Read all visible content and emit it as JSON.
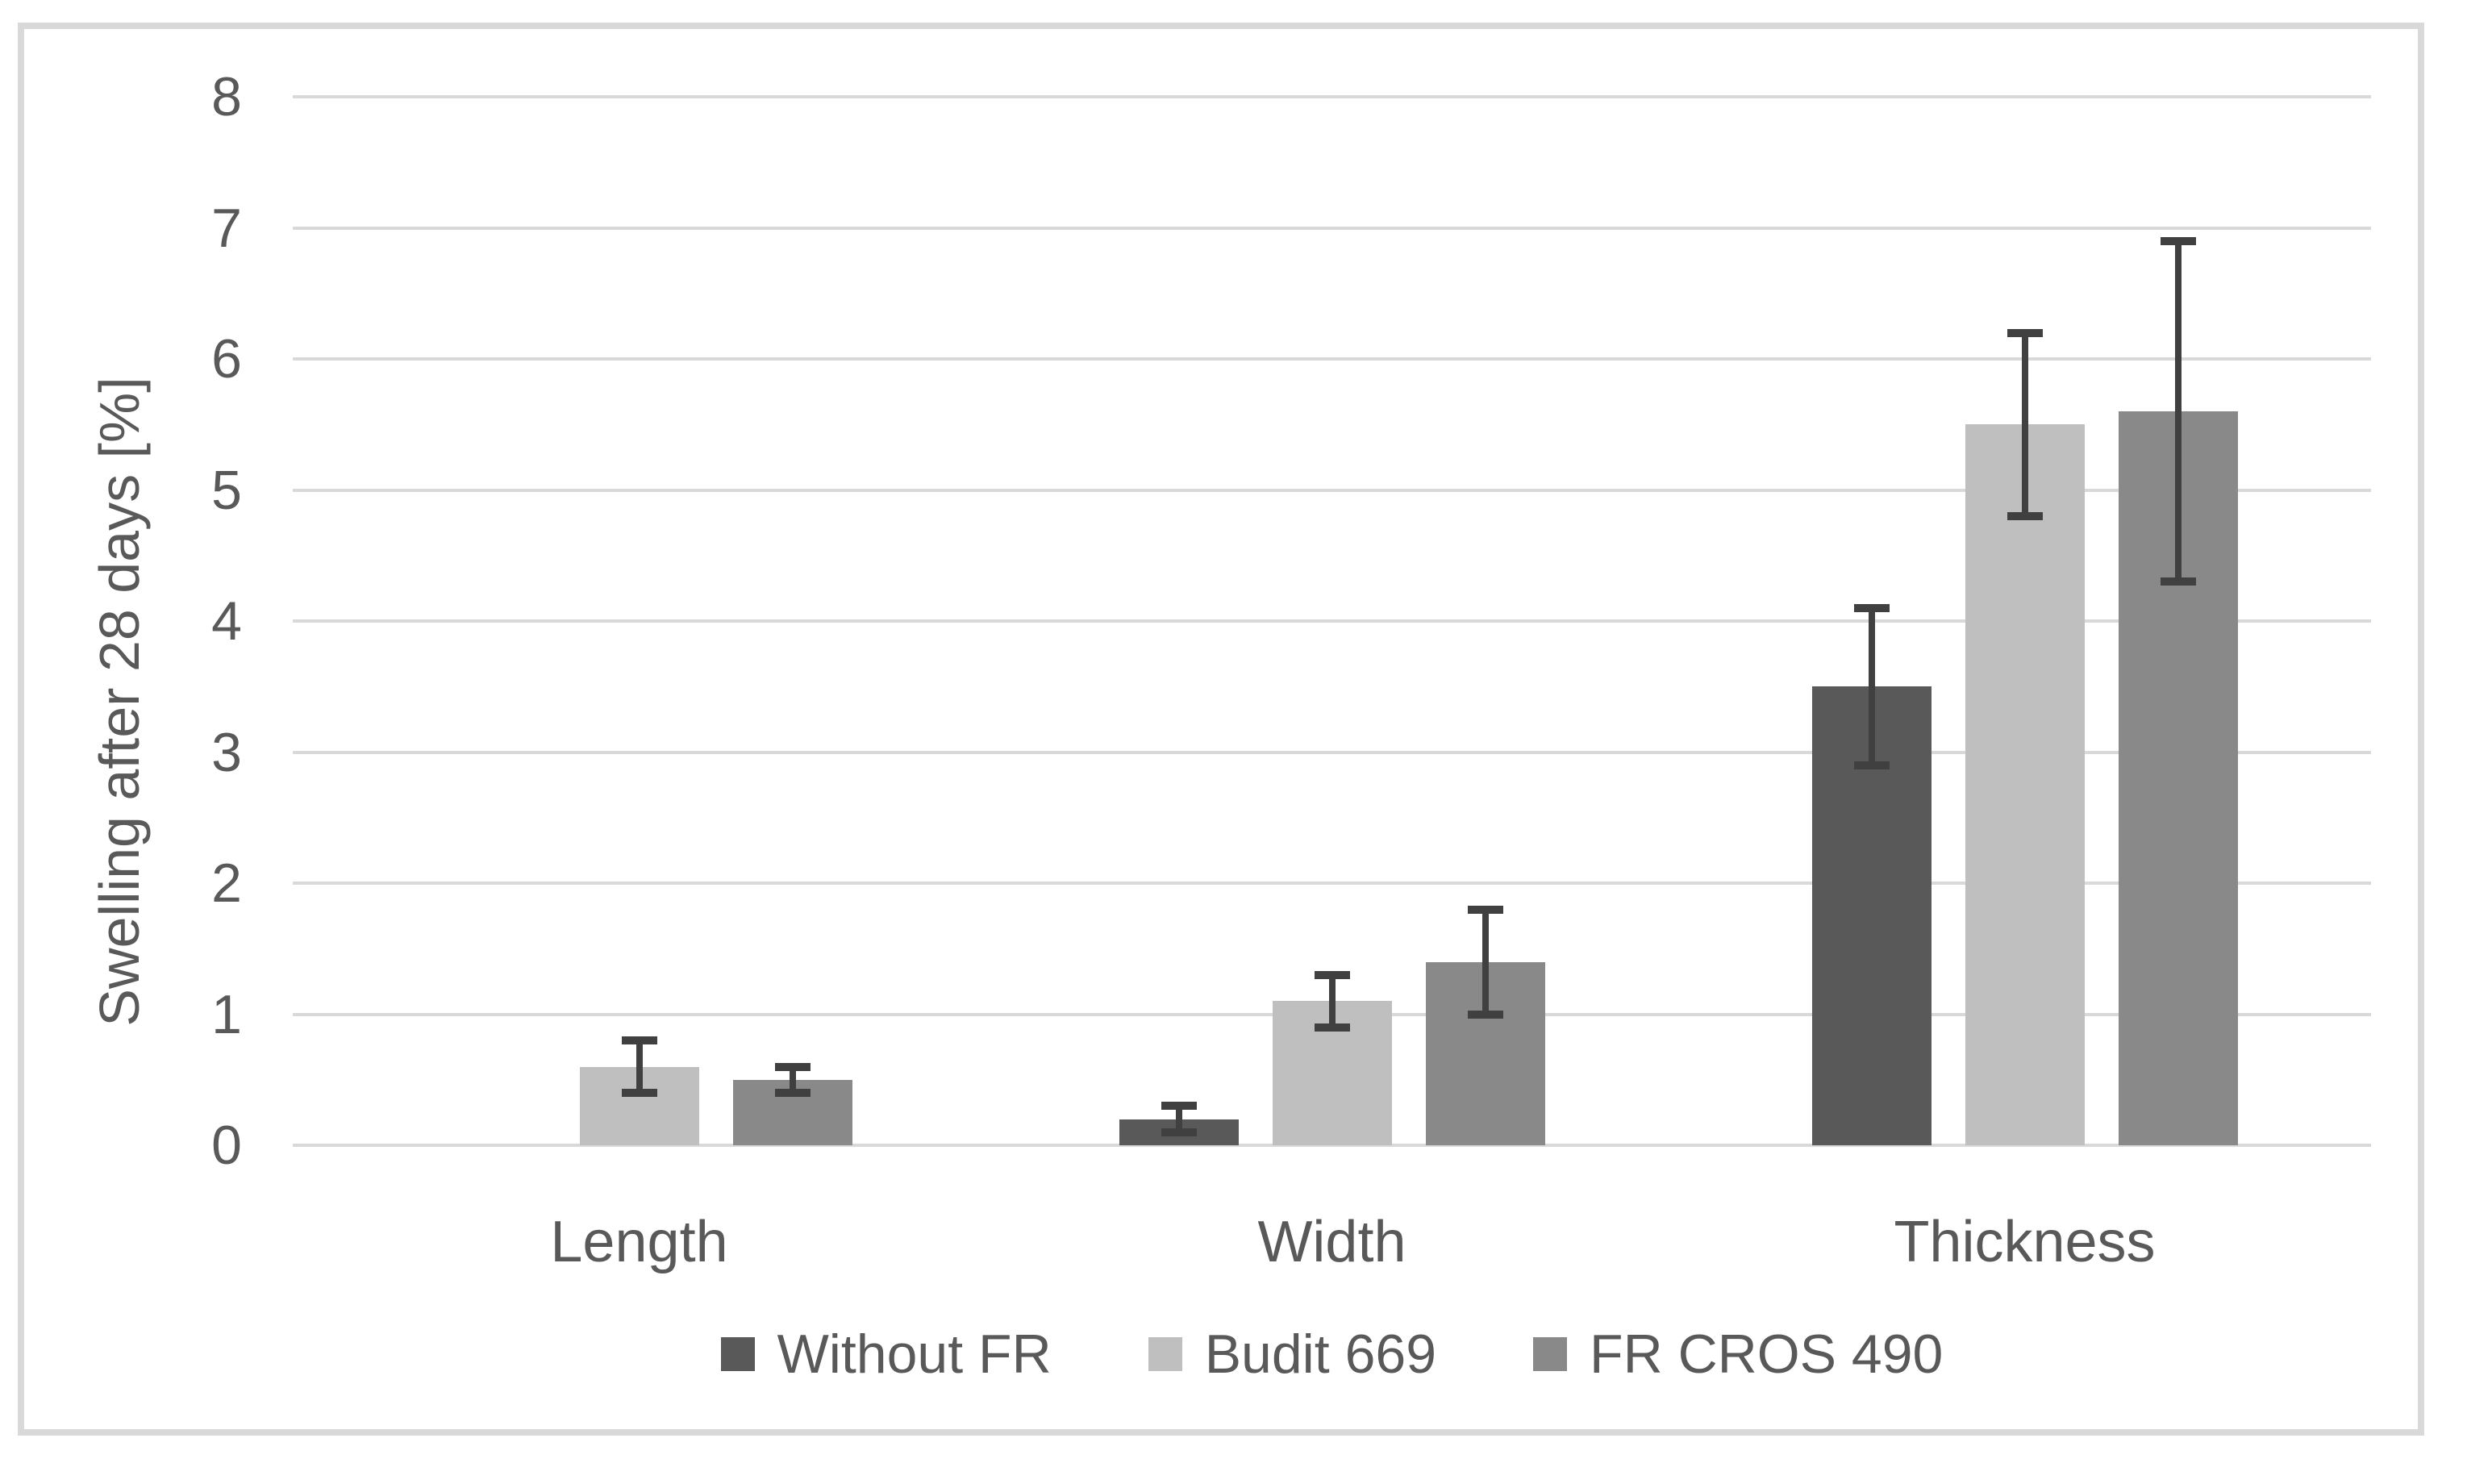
{
  "chart_data": {
    "type": "bar",
    "title": "",
    "xlabel": "",
    "ylabel": "Swelling after 28 days [%]",
    "categories": [
      "Length",
      "Width",
      "Thickness"
    ],
    "series": [
      {
        "name": "Without FR",
        "color": "#595959",
        "values": [
          0,
          0.2,
          3.5
        ],
        "error_minus": [
          0,
          0.1,
          0.6
        ],
        "error_plus": [
          0,
          0.1,
          0.6
        ]
      },
      {
        "name": "Budit 669",
        "color": "#bfbfbf",
        "values": [
          0.6,
          1.1,
          5.5
        ],
        "error_minus": [
          0.2,
          0.2,
          0.7
        ],
        "error_plus": [
          0.2,
          0.2,
          0.7
        ]
      },
      {
        "name": "FR CROS 490",
        "color": "#898989",
        "values": [
          0.5,
          1.4,
          5.6
        ],
        "error_minus": [
          0.1,
          0.4,
          1.3
        ],
        "error_plus": [
          0.1,
          0.4,
          1.3
        ]
      }
    ],
    "ylim": [
      0,
      8
    ],
    "yticks": [
      0,
      1,
      2,
      3,
      4,
      5,
      6,
      7,
      8
    ],
    "grid": "horizontal",
    "legend_position": "bottom",
    "colors": {
      "gridline": "#d9d9d9",
      "frame_border": "#d9d9d9",
      "error_bar": "#404040",
      "text": "#595959",
      "background": "#ffffff"
    }
  }
}
